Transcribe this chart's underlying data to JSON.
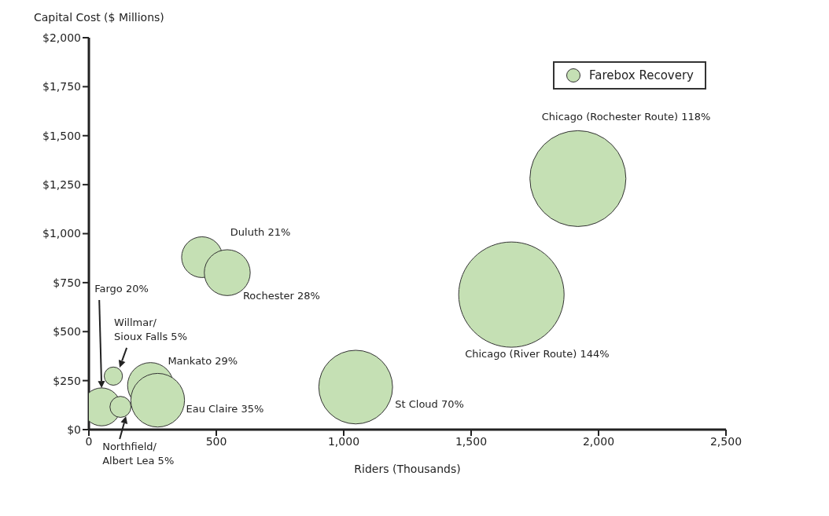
{
  "chart_data": {
    "type": "bubble",
    "xlabel": "Riders (Thousands)",
    "ylabel": "Capital Cost ($ Millions)",
    "xlim": [
      0,
      2500
    ],
    "xticks": [
      0,
      500,
      {
        "value": 1000,
        "label": "1,000"
      },
      {
        "value": 1500,
        "label": "1,500"
      },
      {
        "value": 2000,
        "label": "2,000"
      },
      {
        "value": 2500,
        "label": "2,500"
      }
    ],
    "ylim": [
      0,
      2000
    ],
    "yticks": [
      {
        "value": 0,
        "label": "$0"
      },
      {
        "value": 250,
        "label": "$250"
      },
      {
        "value": 500,
        "label": "$500"
      },
      {
        "value": 750,
        "label": "$750"
      },
      {
        "value": 1000,
        "label": "$1,000"
      },
      {
        "value": 1250,
        "label": "$1,250"
      },
      {
        "value": 1500,
        "label": "$1,500"
      },
      {
        "value": 1750,
        "label": "$1,750"
      },
      {
        "value": 2000,
        "label": "$2,000"
      }
    ],
    "grid": false,
    "legend": "top right",
    "series": [
      {
        "name": "Farebox Recovery",
        "color": "#c5e0b4",
        "x": [
          1919,
          1658,
          1047,
          444,
          543,
          50,
          96,
          242,
          270,
          124
        ],
        "values": [
          1281,
          689,
          217,
          880,
          801,
          116,
          273,
          225,
          150,
          116
        ],
        "sizes": [
          0.83,
          1,
          0.49,
          0.15,
          0.19,
          0.13,
          0.03,
          0.19,
          0.26,
          0.04
        ]
      }
    ],
    "annotations": [
      "Chicago (Rochester Route) 118%",
      "Chicago (River Route) 144%",
      "St Cloud 70%",
      "Duluth 21%",
      "Rochester 28%",
      "Fargo 20%",
      "Willmar/\nSioux Falls 5%",
      "Mankato 29%",
      "Eau Claire 35%",
      "Northfield/\nAlbert Lea 5%"
    ]
  }
}
